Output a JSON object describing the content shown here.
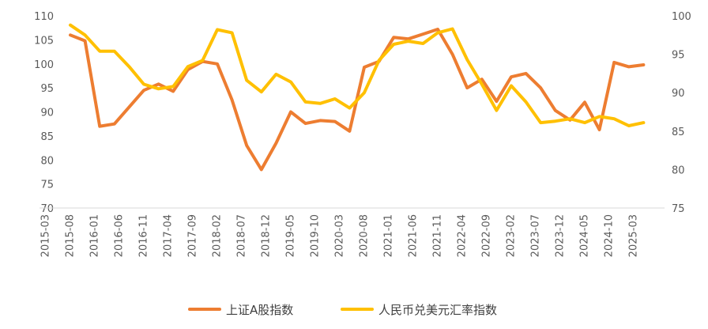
{
  "chart_data": {
    "type": "line",
    "title": "",
    "xlabel": "",
    "ylabel_left": "",
    "ylabel_right": "",
    "x_tick_labels": [
      "2015-03",
      "2015-08",
      "2016-01",
      "2016-06",
      "2016-11",
      "2017-04",
      "2017-09",
      "2018-02",
      "2018-07",
      "2018-12",
      "2019-05",
      "2019-10",
      "2020-03",
      "2020-08",
      "2021-01",
      "2021-06",
      "2021-11",
      "2022-04",
      "2022-09",
      "2023-02",
      "2023-07",
      "2023-12",
      "2024-05",
      "2024-10",
      "2025-03"
    ],
    "y_left": {
      "min": 70,
      "max": 110,
      "ticks": [
        70,
        75,
        80,
        85,
        90,
        95,
        100,
        105,
        110
      ]
    },
    "y_right": {
      "min": 75,
      "max": 100,
      "ticks": [
        75,
        80,
        85,
        90,
        95,
        100
      ]
    },
    "grid": false,
    "legend_position": "bottom",
    "series": [
      {
        "name": "上证A股指数",
        "axis": "left",
        "color": "#ED7D31",
        "points": [
          [
            "2015-08",
            106.0
          ],
          [
            "2015-11",
            104.8
          ],
          [
            "2016-02",
            87.0
          ],
          [
            "2016-05",
            87.5
          ],
          [
            "2016-08",
            91.0
          ],
          [
            "2016-11",
            94.5
          ],
          [
            "2017-02",
            95.8
          ],
          [
            "2017-05",
            94.3
          ],
          [
            "2017-08",
            98.8
          ],
          [
            "2017-11",
            100.5
          ],
          [
            "2018-02",
            100.0
          ],
          [
            "2018-05",
            92.5
          ],
          [
            "2018-08",
            83.0
          ],
          [
            "2018-11",
            78.0
          ],
          [
            "2019-02",
            83.5
          ],
          [
            "2019-05",
            90.0
          ],
          [
            "2019-08",
            87.6
          ],
          [
            "2019-11",
            88.2
          ],
          [
            "2020-02",
            88.0
          ],
          [
            "2020-05",
            86.0
          ],
          [
            "2020-08",
            99.3
          ],
          [
            "2020-11",
            100.5
          ],
          [
            "2021-02",
            105.5
          ],
          [
            "2021-05",
            105.2
          ],
          [
            "2021-08",
            106.2
          ],
          [
            "2021-11",
            107.2
          ],
          [
            "2022-02",
            102.0
          ],
          [
            "2022-05",
            95.0
          ],
          [
            "2022-08",
            96.8
          ],
          [
            "2022-11",
            92.2
          ],
          [
            "2023-02",
            97.3
          ],
          [
            "2023-05",
            98.0
          ],
          [
            "2023-08",
            95.0
          ],
          [
            "2023-11",
            90.3
          ],
          [
            "2024-02",
            88.3
          ],
          [
            "2024-05",
            92.0
          ],
          [
            "2024-08",
            86.3
          ],
          [
            "2024-11",
            100.3
          ],
          [
            "2025-02",
            99.4
          ],
          [
            "2025-05",
            99.8
          ]
        ]
      },
      {
        "name": "人民币兑美元汇率指数",
        "axis": "right",
        "color": "#FFC000",
        "points": [
          [
            "2015-08",
            98.8
          ],
          [
            "2015-11",
            97.5
          ],
          [
            "2016-02",
            95.4
          ],
          [
            "2016-05",
            95.4
          ],
          [
            "2016-08",
            93.4
          ],
          [
            "2016-11",
            91.1
          ],
          [
            "2017-02",
            90.5
          ],
          [
            "2017-05",
            90.8
          ],
          [
            "2017-08",
            93.4
          ],
          [
            "2017-11",
            94.2
          ],
          [
            "2018-02",
            98.2
          ],
          [
            "2018-05",
            97.8
          ],
          [
            "2018-08",
            91.6
          ],
          [
            "2018-11",
            90.1
          ],
          [
            "2019-02",
            92.4
          ],
          [
            "2019-05",
            91.4
          ],
          [
            "2019-08",
            88.8
          ],
          [
            "2019-11",
            88.6
          ],
          [
            "2020-02",
            89.2
          ],
          [
            "2020-05",
            88.0
          ],
          [
            "2020-08",
            90.0
          ],
          [
            "2020-11",
            94.2
          ],
          [
            "2021-02",
            96.3
          ],
          [
            "2021-05",
            96.7
          ],
          [
            "2021-08",
            96.4
          ],
          [
            "2021-11",
            97.8
          ],
          [
            "2022-02",
            98.3
          ],
          [
            "2022-05",
            94.3
          ],
          [
            "2022-08",
            91.1
          ],
          [
            "2022-11",
            87.7
          ],
          [
            "2023-02",
            90.9
          ],
          [
            "2023-05",
            88.8
          ],
          [
            "2023-08",
            86.1
          ],
          [
            "2023-11",
            86.3
          ],
          [
            "2024-02",
            86.6
          ],
          [
            "2024-05",
            86.1
          ],
          [
            "2024-08",
            86.9
          ],
          [
            "2024-11",
            86.6
          ],
          [
            "2025-02",
            85.7
          ],
          [
            "2025-05",
            86.1
          ]
        ]
      }
    ]
  }
}
